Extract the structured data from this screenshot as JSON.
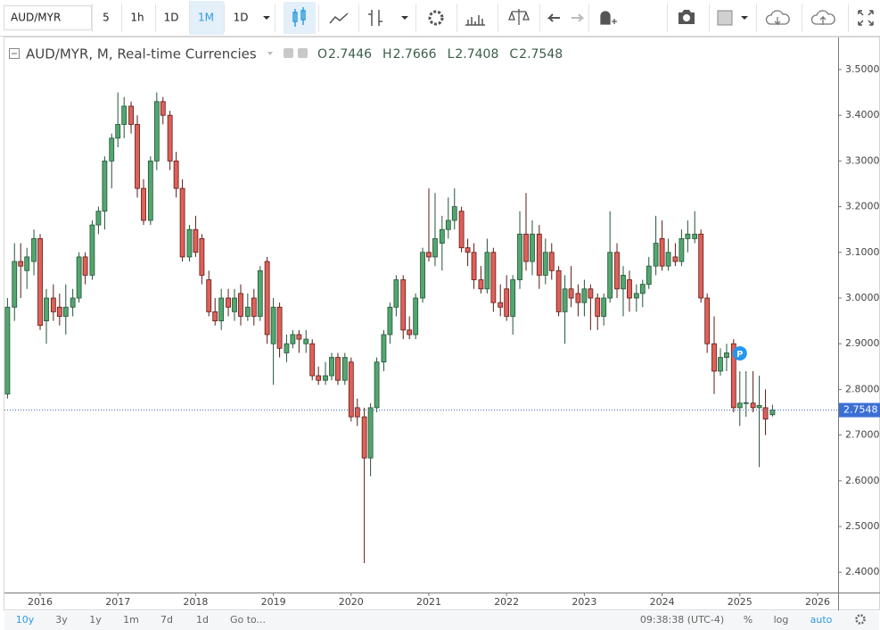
{
  "toolbar": {
    "symbol": "AUD/MYR",
    "intervals": [
      "5",
      "1h",
      "1D",
      "1M",
      "1D"
    ]
  },
  "chart_data": {
    "type": "candlestick",
    "title": "AUD/MYR, M, Real-time Currencies",
    "ohlc_legend": [
      {
        "label": "O",
        "value": 2.7446
      },
      {
        "label": "H",
        "value": 2.7666
      },
      {
        "label": "L",
        "value": 2.7408
      },
      {
        "label": "C",
        "value": 2.7548
      }
    ],
    "x": [
      2015.58,
      2015.67,
      2015.75,
      2015.83,
      2015.92,
      2016,
      2016.08,
      2016.17,
      2016.25,
      2016.33,
      2016.42,
      2016.5,
      2016.58,
      2016.67,
      2016.75,
      2016.83,
      2016.92,
      2017,
      2017.08,
      2017.17,
      2017.25,
      2017.33,
      2017.42,
      2017.5,
      2017.58,
      2017.67,
      2017.75,
      2017.83,
      2017.92,
      2018,
      2018.08,
      2018.17,
      2018.25,
      2018.33,
      2018.42,
      2018.5,
      2018.58,
      2018.67,
      2018.75,
      2018.83,
      2018.92,
      2019,
      2019.08,
      2019.17,
      2019.25,
      2019.33,
      2019.42,
      2019.5,
      2019.58,
      2019.67,
      2019.75,
      2019.83,
      2019.92,
      2020,
      2020.08,
      2020.17,
      2020.25,
      2020.33,
      2020.42,
      2020.5,
      2020.58,
      2020.67,
      2020.75,
      2020.83,
      2020.92,
      2021,
      2021.08,
      2021.17,
      2021.25,
      2021.33,
      2021.42,
      2021.5,
      2021.58,
      2021.67,
      2021.75,
      2021.83,
      2021.92,
      2022,
      2022.08,
      2022.17,
      2022.25,
      2022.33,
      2022.42,
      2022.5,
      2022.58,
      2022.67,
      2022.75,
      2022.83,
      2022.92,
      2023,
      2023.08,
      2023.17,
      2023.25,
      2023.33,
      2023.42,
      2023.5,
      2023.58,
      2023.67,
      2023.75,
      2023.83,
      2023.92,
      2024,
      2024.08,
      2024.17,
      2024.25,
      2024.33,
      2024.42,
      2024.5,
      2024.58,
      2024.67,
      2024.75,
      2024.83,
      2024.92,
      2025,
      2025.08,
      2025.17,
      2025.25,
      2025.33,
      2025.42
    ],
    "series": [
      {
        "up_color": "#53a66f",
        "down_color": "#e0605a",
        "up_border": "#225437",
        "down_border": "#5b1a13",
        "open": [
          2.79,
          2.98,
          3.08,
          3.06,
          3.08,
          3.13,
          2.95,
          3.0,
          2.98,
          2.96,
          2.98,
          3.0,
          3.09,
          3.05,
          3.16,
          3.19,
          3.3,
          3.35,
          3.38,
          3.42,
          3.38,
          3.24,
          3.17,
          3.3,
          3.43,
          3.4,
          3.3,
          3.24,
          3.09,
          3.15,
          3.13,
          3.04,
          2.97,
          2.95,
          3.0,
          2.97,
          3.01,
          2.96,
          3.0,
          2.96,
          3.08,
          2.9,
          2.98,
          2.88,
          2.9,
          2.92,
          2.9,
          2.9,
          2.83,
          2.82,
          2.83,
          2.87,
          2.82,
          2.86,
          2.76,
          2.74,
          2.65,
          2.76,
          2.86,
          2.92,
          2.98,
          3.04,
          2.93,
          2.92,
          3.0,
          3.1,
          3.09,
          3.12,
          3.15,
          3.17,
          3.19,
          3.11,
          3.1,
          3.04,
          3.02,
          3.1,
          2.99,
          3.02,
          2.96,
          3.04,
          3.14,
          3.08,
          3.14,
          3.05,
          3.1,
          3.06,
          2.97,
          3.02,
          3.01,
          2.99,
          3.02,
          3.0,
          2.96,
          3.0,
          3.1,
          3.02,
          3.04,
          3.0,
          3.01,
          3.03,
          3.07,
          3.13,
          3.07,
          3.09,
          3.08,
          3.13,
          3.13,
          3.14,
          3.0,
          2.9,
          2.84,
          2.87,
          2.9,
          2.76,
          2.77,
          2.77,
          2.76,
          2.76,
          2.7446
        ],
        "high": [
          3.0,
          3.12,
          3.12,
          3.11,
          3.15,
          3.14,
          3.02,
          3.03,
          3.01,
          3.03,
          3.02,
          3.1,
          3.1,
          3.17,
          3.2,
          3.31,
          3.36,
          3.45,
          3.44,
          3.43,
          3.4,
          3.26,
          3.31,
          3.45,
          3.44,
          3.41,
          3.32,
          3.26,
          3.16,
          3.18,
          3.14,
          3.06,
          3.0,
          3.02,
          3.02,
          3.02,
          3.03,
          3.01,
          3.02,
          3.07,
          3.09,
          3.0,
          2.99,
          2.92,
          2.93,
          2.93,
          2.93,
          2.91,
          2.85,
          2.86,
          2.88,
          2.88,
          2.88,
          2.87,
          2.78,
          2.76,
          2.77,
          2.87,
          2.93,
          2.99,
          3.05,
          3.05,
          2.96,
          3.01,
          3.11,
          3.24,
          3.23,
          3.18,
          3.22,
          3.24,
          3.2,
          3.13,
          3.12,
          3.07,
          3.13,
          3.11,
          3.03,
          3.05,
          3.05,
          3.19,
          3.23,
          3.17,
          3.16,
          3.13,
          3.12,
          3.07,
          3.05,
          3.07,
          3.03,
          3.04,
          3.03,
          3.01,
          3.01,
          3.19,
          3.12,
          3.07,
          3.06,
          3.03,
          3.04,
          3.09,
          3.18,
          3.17,
          3.13,
          3.12,
          3.15,
          3.17,
          3.19,
          3.15,
          3.01,
          2.96,
          2.89,
          2.9,
          2.91,
          2.84,
          2.84,
          2.84,
          2.83,
          2.8,
          2.7666
        ],
        "low": [
          2.78,
          2.95,
          3.0,
          3.02,
          3.05,
          2.93,
          2.9,
          2.95,
          2.94,
          2.92,
          2.96,
          2.99,
          3.03,
          3.04,
          3.14,
          3.15,
          3.24,
          3.33,
          3.35,
          3.36,
          3.22,
          3.16,
          3.16,
          3.28,
          3.38,
          3.28,
          3.22,
          3.08,
          3.08,
          3.09,
          3.03,
          2.96,
          2.94,
          2.93,
          2.96,
          2.95,
          2.94,
          2.95,
          2.94,
          2.95,
          2.9,
          2.81,
          2.87,
          2.86,
          2.89,
          2.88,
          2.88,
          2.82,
          2.81,
          2.81,
          2.82,
          2.81,
          2.81,
          2.73,
          2.72,
          2.42,
          2.61,
          2.75,
          2.84,
          2.9,
          2.96,
          2.91,
          2.91,
          2.91,
          2.99,
          3.08,
          3.07,
          3.06,
          3.13,
          3.15,
          3.1,
          3.07,
          3.02,
          3.01,
          3.01,
          2.97,
          2.96,
          2.95,
          2.92,
          3.02,
          3.06,
          3.05,
          3.02,
          3.03,
          3.04,
          2.96,
          2.9,
          2.98,
          2.96,
          2.96,
          2.93,
          2.93,
          2.94,
          2.99,
          3.0,
          2.96,
          2.97,
          2.97,
          2.98,
          3.02,
          3.05,
          3.06,
          3.06,
          3.07,
          3.07,
          3.1,
          3.12,
          2.99,
          2.88,
          2.79,
          2.83,
          2.84,
          2.75,
          2.72,
          2.74,
          2.75,
          2.63,
          2.7,
          2.7408
        ],
        "close": [
          2.98,
          3.08,
          3.07,
          3.09,
          3.13,
          2.94,
          3.0,
          2.97,
          2.96,
          2.98,
          3.0,
          3.09,
          3.05,
          3.16,
          3.19,
          3.3,
          3.35,
          3.38,
          3.42,
          3.38,
          3.24,
          3.17,
          3.3,
          3.43,
          3.4,
          3.3,
          3.24,
          3.09,
          3.15,
          3.1,
          3.05,
          2.97,
          2.95,
          3.0,
          2.98,
          3.0,
          2.96,
          2.98,
          2.96,
          3.06,
          2.92,
          2.98,
          2.89,
          2.9,
          2.92,
          2.91,
          2.91,
          2.83,
          2.82,
          2.83,
          2.87,
          2.82,
          2.87,
          2.74,
          2.74,
          2.65,
          2.76,
          2.86,
          2.92,
          2.98,
          3.04,
          2.93,
          2.92,
          3.0,
          3.1,
          3.09,
          3.13,
          3.15,
          3.17,
          3.2,
          3.11,
          3.1,
          3.04,
          3.02,
          3.1,
          2.99,
          2.98,
          2.96,
          3.04,
          3.14,
          3.08,
          3.14,
          3.05,
          3.1,
          3.06,
          2.97,
          3.02,
          3.0,
          2.99,
          3.02,
          3.0,
          2.96,
          3.0,
          3.1,
          3.02,
          3.05,
          3.0,
          3.01,
          3.03,
          3.07,
          3.12,
          3.07,
          3.1,
          3.08,
          3.13,
          3.14,
          3.14,
          3.0,
          2.9,
          2.84,
          2.87,
          2.88,
          2.76,
          2.77,
          2.771,
          2.76,
          2.765,
          2.735,
          2.7548
        ]
      }
    ],
    "xlim": [
      2015.541,
      2026.264
    ],
    "xticks": [
      2016,
      2017,
      2018,
      2019,
      2020,
      2021,
      2022,
      2023,
      2024,
      2025,
      2026
    ],
    "ylim": [
      2.3555,
      3.5703
    ],
    "yticks": [
      {
        "value": 2.4,
        "label": "2.4000"
      },
      {
        "value": 2.5,
        "label": "2.5000"
      },
      {
        "value": 2.6,
        "label": "2.6000"
      },
      {
        "value": 2.7,
        "label": "2.7000"
      },
      {
        "value": 2.8,
        "label": "2.8000"
      },
      {
        "value": 2.9,
        "label": "2.9000"
      },
      {
        "value": 3.0,
        "label": "3.0000"
      },
      {
        "value": 3.1,
        "label": "3.1000"
      },
      {
        "value": 3.2,
        "label": "3.2000"
      },
      {
        "value": 3.3,
        "label": "3.3000"
      },
      {
        "value": 3.4,
        "label": "3.4000"
      },
      {
        "value": 3.5,
        "label": "3.5000"
      }
    ],
    "last_price": 2.7548,
    "marker": {
      "label": "P",
      "x": 2025.0,
      "value": 2.879
    }
  },
  "bottom_bar": {
    "ranges": [
      "10y",
      "3y",
      "1y",
      "1m",
      "7d",
      "1d"
    ],
    "goto": "Go to...",
    "time": "09:38:38 (UTC-4)",
    "options": [
      "%",
      "log",
      "auto"
    ]
  }
}
